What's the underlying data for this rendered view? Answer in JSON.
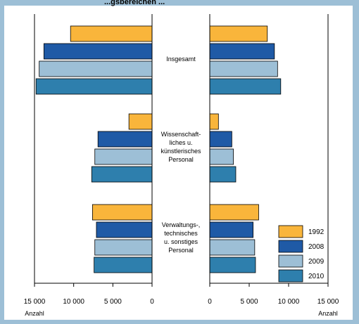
{
  "title_fragment": "...gsbereichen ...",
  "chart_data": {
    "type": "bar",
    "orientation": "horizontal-butterfly",
    "categories": [
      "Insgesamt",
      "Wissenschaft-\nliches u.\nkünstlerisches\nPersonal",
      "Verwaltungs-,\ntechnisches\nu. sonstiges\nPersonal"
    ],
    "left_panel": {
      "series": [
        {
          "name": "1992",
          "values": [
            10400,
            2950,
            7600
          ]
        },
        {
          "name": "2008",
          "values": [
            13800,
            6900,
            7100
          ]
        },
        {
          "name": "2009",
          "values": [
            14400,
            7300,
            7300
          ]
        },
        {
          "name": "2010",
          "values": [
            14800,
            7700,
            7400
          ]
        }
      ],
      "xlim": [
        15000,
        0
      ],
      "ticks": [
        "15 000",
        "10 000",
        "5 000",
        "0"
      ],
      "axis_label": "Anzahl"
    },
    "right_panel": {
      "series": [
        {
          "name": "1992",
          "values": [
            7300,
            1100,
            6200
          ]
        },
        {
          "name": "2008",
          "values": [
            8200,
            2800,
            5500
          ]
        },
        {
          "name": "2009",
          "values": [
            8600,
            3000,
            5700
          ]
        },
        {
          "name": "2010",
          "values": [
            9000,
            3300,
            5800
          ]
        }
      ],
      "xlim": [
        0,
        15000
      ],
      "ticks": [
        "0",
        "5 000",
        "10 000",
        "15 000"
      ],
      "axis_label": "Anzahl"
    },
    "legend": {
      "position": "bottom-right",
      "entries": [
        "1992",
        "2008",
        "2009",
        "2010"
      ]
    },
    "colors": {
      "1992": "#f9b53b",
      "2008": "#1f5aa6",
      "2009": "#9dbfd6",
      "2010": "#2e7fad",
      "background": "#9dbfd6"
    }
  }
}
